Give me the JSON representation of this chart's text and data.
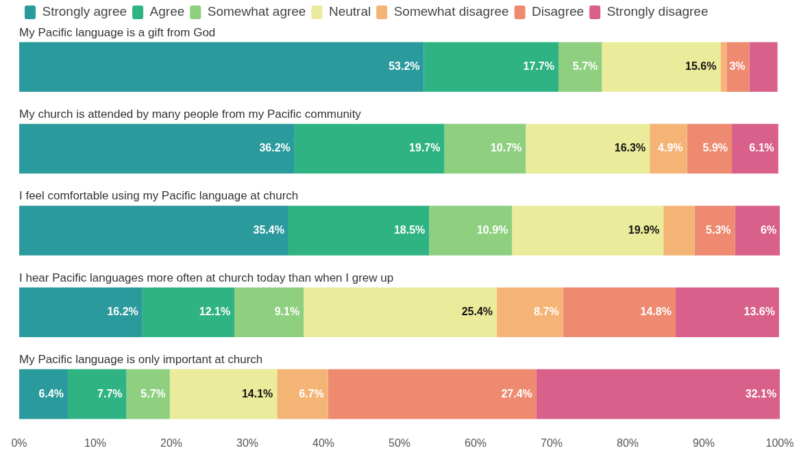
{
  "chart_data": {
    "type": "bar",
    "orientation": "horizontal",
    "stacked": true,
    "legend": "top left",
    "grid": false,
    "categories": [
      "My Pacific language is a gift from God",
      "My church is attended by many people from my Pacific community",
      "I feel comfortable using my Pacific language at church",
      "I hear Pacific languages more often at church today than when I grew up",
      "My Pacific language is only important at church"
    ],
    "xlim": [
      0,
      100
    ],
    "xticks": [
      {
        "value": 0,
        "label": "0%"
      },
      {
        "value": 10,
        "label": "10%"
      },
      {
        "value": 20,
        "label": "20%"
      },
      {
        "value": 30,
        "label": "30%"
      },
      {
        "value": 40,
        "label": "40%"
      },
      {
        "value": 50,
        "label": "50%"
      },
      {
        "value": 60,
        "label": "60%"
      },
      {
        "value": 70,
        "label": "70%"
      },
      {
        "value": 80,
        "label": "80%"
      },
      {
        "value": 90,
        "label": "90%"
      },
      {
        "value": 100,
        "label": "100%"
      }
    ],
    "series": [
      {
        "name": "Strongly agree",
        "color": "#2a9a9c",
        "values": [
          53.2,
          36.2,
          35.4,
          16.2,
          6.4
        ],
        "value_labels": [
          "53.2%",
          "36.2%",
          "35.4%",
          "16.2%",
          "6.4%"
        ]
      },
      {
        "name": "Agree",
        "color": "#30b383",
        "values": [
          17.7,
          19.7,
          18.5,
          12.1,
          7.7
        ],
        "value_labels": [
          "17.7%",
          "19.7%",
          "18.5%",
          "12.1%",
          "7.7%"
        ]
      },
      {
        "name": "Somewhat agree",
        "color": "#8fcf80",
        "values": [
          5.7,
          10.7,
          10.9,
          9.1,
          5.7
        ],
        "value_labels": [
          "5.7%",
          "10.7%",
          "10.9%",
          "9.1%",
          "5.7%"
        ]
      },
      {
        "name": "Neutral",
        "color": "#ebeb9c",
        "values": [
          15.6,
          16.3,
          19.9,
          25.4,
          14.1
        ],
        "value_labels": [
          "15.6%",
          "16.3%",
          "19.9%",
          "25.4%",
          "14.1%"
        ]
      },
      {
        "name": "Somewhat disagree",
        "color": "#f4b476",
        "values": [
          0.8,
          4.9,
          4.1,
          8.7,
          6.7
        ],
        "value_labels": [
          null,
          "4.9%",
          null,
          "8.7%",
          "6.7%"
        ]
      },
      {
        "name": "Disagree",
        "color": "#ee8a70",
        "values": [
          3,
          5.9,
          5.3,
          14.8,
          27.4
        ],
        "value_labels": [
          "3%",
          "5.9%",
          "5.3%",
          "14.8%",
          "27.4%"
        ]
      },
      {
        "name": "Strongly disagree",
        "color": "#d8608a",
        "values": [
          3.7,
          6.1,
          6,
          13.6,
          32.1
        ],
        "value_labels": [
          null,
          "6.1%",
          "6%",
          "13.6%",
          "32.1%"
        ]
      }
    ]
  }
}
